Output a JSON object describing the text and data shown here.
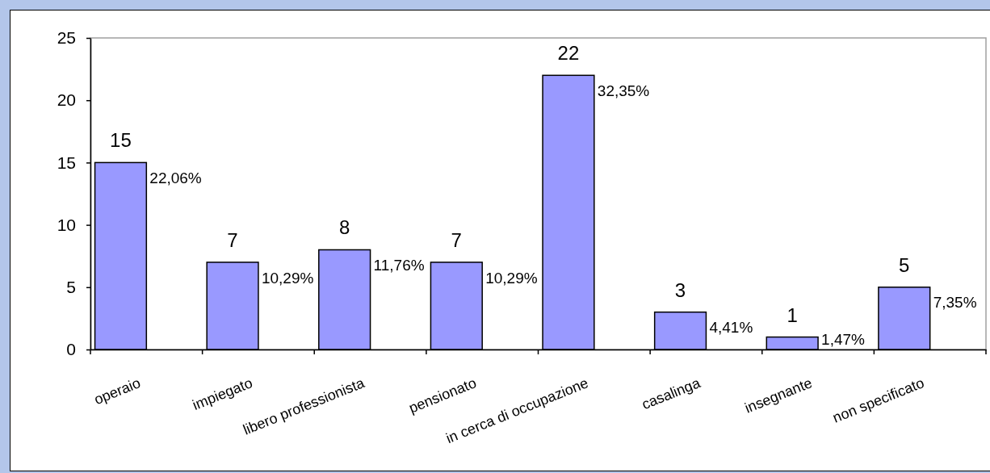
{
  "chart_data": {
    "type": "bar",
    "categories": [
      "operaio",
      "impiegato",
      "libero professionista",
      "pensionato",
      "in cerca di occupazione",
      "casalinga",
      "insegnante",
      "non specificato"
    ],
    "values": [
      15,
      7,
      8,
      7,
      22,
      3,
      1,
      5
    ],
    "color": "#9999ff",
    "ylim": [
      0,
      25
    ],
    "yticks": [
      0,
      5,
      10,
      15,
      20,
      25
    ],
    "data_labels": true,
    "annotations": [
      {
        "text": "22,06%",
        "x": "operaio",
        "y": 15
      },
      {
        "text": "10,29%",
        "x": "impiegato",
        "y": 7
      },
      {
        "text": "11,76%",
        "x": "libero professionista",
        "y": 8
      },
      {
        "text": "10,29%",
        "x": "pensionato",
        "y": 7
      },
      {
        "text": "32,35%",
        "x": "in cerca di occupazione",
        "y": 22
      },
      {
        "text": "4,41%",
        "x": "casalinga",
        "y": 3
      },
      {
        "text": "1,47%",
        "x": "insegnante",
        "y": 1
      },
      {
        "text": "7,35%",
        "x": "non specificato",
        "y": 5
      }
    ]
  }
}
